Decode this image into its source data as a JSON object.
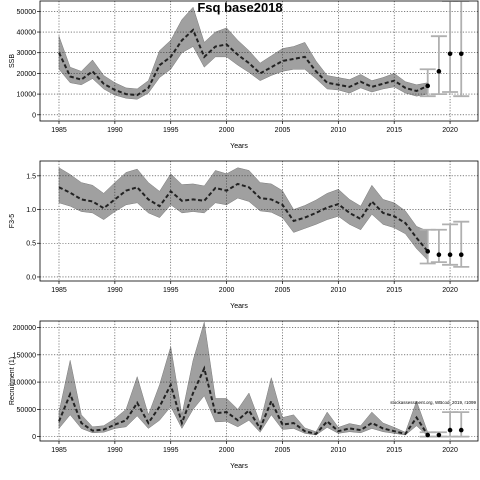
{
  "title": "Fsq base2018",
  "colors": {
    "band": "#a0a0a0",
    "band_edge": "#7a7a7a",
    "median": "#222222",
    "forecast_bar": "#b0b0b0",
    "grid": "#333333"
  },
  "chart_data": [
    {
      "type": "line",
      "name": "ssb-panel",
      "ylabel": "SSB",
      "xlabel": "Years",
      "xlim": [
        1983.3,
        2022.5
      ],
      "ylim": [
        -3000,
        55000
      ],
      "xticks": [
        1985,
        1990,
        1995,
        2000,
        2005,
        2010,
        2015,
        2020
      ],
      "yticks": [
        0,
        10000,
        20000,
        30000,
        40000,
        50000
      ],
      "grid": true,
      "x": [
        1985,
        1986,
        1987,
        1988,
        1989,
        1990,
        1991,
        1992,
        1993,
        1994,
        1995,
        1996,
        1997,
        1998,
        1999,
        2000,
        2001,
        2002,
        2003,
        2004,
        2005,
        2006,
        2007,
        2008,
        2009,
        2010,
        2011,
        2012,
        2013,
        2014,
        2015,
        2016,
        2017,
        2018
      ],
      "median": [
        30000,
        18500,
        17000,
        21000,
        15000,
        12000,
        10000,
        9500,
        13000,
        24000,
        28000,
        36000,
        41000,
        28000,
        33000,
        34000,
        29000,
        25000,
        20000,
        23000,
        26000,
        27000,
        28000,
        21000,
        15500,
        14500,
        13500,
        16000,
        13500,
        15000,
        16500,
        13000,
        11500,
        14000
      ],
      "lower": [
        22000,
        15500,
        14500,
        17500,
        12500,
        9500,
        8000,
        7500,
        10500,
        18000,
        22000,
        30000,
        33000,
        23000,
        28000,
        28000,
        24000,
        20500,
        16500,
        19000,
        21000,
        22000,
        22000,
        17500,
        12500,
        12000,
        10500,
        13000,
        11000,
        12500,
        13500,
        10500,
        9000,
        10000
      ],
      "upper": [
        38000,
        23000,
        21000,
        26500,
        19000,
        15500,
        13000,
        12500,
        16500,
        31000,
        36000,
        46000,
        52000,
        35000,
        40000,
        42000,
        36000,
        31000,
        25000,
        28500,
        32000,
        33000,
        35000,
        26000,
        19000,
        18000,
        17000,
        19500,
        16500,
        18000,
        20000,
        16000,
        14500,
        15500
      ],
      "forecast": [
        {
          "x": 2018,
          "median": 14000,
          "lower": 9000,
          "upper": 22000
        },
        {
          "x": 2019,
          "median": 21000,
          "lower": 10000,
          "upper": 38000
        },
        {
          "x": 2020,
          "median": 29500,
          "lower": 11000,
          "upper": 55000
        },
        {
          "x": 2021,
          "median": 29500,
          "lower": 9000,
          "upper": 55000
        }
      ]
    },
    {
      "type": "line",
      "name": "f-panel",
      "ylabel": "F3-5",
      "xlabel": "Years",
      "xlim": [
        1983.3,
        2022.5
      ],
      "ylim": [
        -0.06,
        1.72
      ],
      "xticks": [
        1985,
        1990,
        1995,
        2000,
        2005,
        2010,
        2015,
        2020
      ],
      "yticks": [
        0.0,
        0.5,
        1.0,
        1.5
      ],
      "ytick_labels": [
        "0.0",
        "0.5",
        "1.0",
        "1.5"
      ],
      "grid": true,
      "x": [
        1985,
        1986,
        1987,
        1988,
        1989,
        1990,
        1991,
        1992,
        1993,
        1994,
        1995,
        1996,
        1997,
        1998,
        1999,
        2000,
        2001,
        2002,
        2003,
        2004,
        2005,
        2006,
        2007,
        2008,
        2009,
        2010,
        2011,
        2012,
        2013,
        2014,
        2015,
        2016,
        2017,
        2018
      ],
      "median": [
        1.33,
        1.25,
        1.15,
        1.12,
        1.02,
        1.15,
        1.28,
        1.33,
        1.15,
        1.05,
        1.27,
        1.13,
        1.15,
        1.13,
        1.32,
        1.28,
        1.38,
        1.33,
        1.17,
        1.15,
        1.07,
        0.83,
        0.88,
        0.95,
        1.03,
        1.08,
        0.95,
        0.86,
        1.12,
        0.95,
        0.9,
        0.8,
        0.58,
        0.38
      ],
      "lower": [
        1.1,
        1.05,
        0.97,
        0.95,
        0.85,
        0.97,
        1.07,
        1.1,
        0.95,
        0.88,
        1.07,
        0.95,
        0.97,
        0.95,
        1.1,
        1.07,
        1.17,
        1.12,
        0.98,
        0.96,
        0.88,
        0.66,
        0.72,
        0.78,
        0.85,
        0.9,
        0.78,
        0.7,
        0.93,
        0.78,
        0.73,
        0.64,
        0.42,
        0.25
      ],
      "upper": [
        1.62,
        1.52,
        1.4,
        1.36,
        1.24,
        1.4,
        1.55,
        1.6,
        1.4,
        1.27,
        1.53,
        1.37,
        1.38,
        1.35,
        1.58,
        1.53,
        1.62,
        1.58,
        1.4,
        1.38,
        1.28,
        1.0,
        1.06,
        1.14,
        1.24,
        1.3,
        1.15,
        1.05,
        1.36,
        1.15,
        1.1,
        0.98,
        0.75,
        0.68
      ],
      "forecast": [
        {
          "x": 2018,
          "median": 0.38,
          "lower": 0.2,
          "upper": 0.7
        },
        {
          "x": 2019,
          "median": 0.33,
          "lower": 0.22,
          "upper": 0.7
        },
        {
          "x": 2020,
          "median": 0.33,
          "lower": 0.18,
          "upper": 0.78
        },
        {
          "x": 2021,
          "median": 0.33,
          "lower": 0.15,
          "upper": 0.82
        }
      ]
    },
    {
      "type": "line",
      "name": "recruitment-panel",
      "ylabel": "Recruitment (1)",
      "xlabel": "Years",
      "xlim": [
        1983.3,
        2022.5
      ],
      "ylim": [
        -8000,
        212000
      ],
      "xticks": [
        1985,
        1990,
        1995,
        2000,
        2005,
        2010,
        2015,
        2020
      ],
      "yticks": [
        0,
        50000,
        100000,
        150000,
        200000
      ],
      "grid": true,
      "note": "stockassessment.org, WBcod_2019, r1099",
      "x": [
        1985,
        1986,
        1987,
        1988,
        1989,
        1990,
        1991,
        1992,
        1993,
        1994,
        1995,
        1996,
        1997,
        1998,
        1999,
        2000,
        2001,
        2002,
        2003,
        2004,
        2005,
        2006,
        2007,
        2008,
        2009,
        2010,
        2011,
        2012,
        2013,
        2014,
        2015,
        2016,
        2017,
        2018
      ],
      "median": [
        28000,
        78000,
        25000,
        11000,
        13000,
        22000,
        30000,
        62000,
        25000,
        55000,
        95000,
        25000,
        80000,
        125000,
        43000,
        45000,
        30000,
        48000,
        15000,
        65000,
        22000,
        25000,
        10000,
        5000,
        28000,
        10000,
        15000,
        12000,
        25000,
        15000,
        10000,
        5000,
        35000,
        3000
      ],
      "lower": [
        15000,
        40000,
        15000,
        7000,
        8000,
        15000,
        18000,
        38000,
        15000,
        30000,
        55000,
        15000,
        50000,
        75000,
        27000,
        28000,
        18000,
        30000,
        8000,
        40000,
        13000,
        15000,
        6000,
        3000,
        17000,
        6000,
        9000,
        7000,
        15000,
        9000,
        6000,
        3000,
        20000,
        1000
      ],
      "upper": [
        45000,
        140000,
        40000,
        18000,
        20000,
        33000,
        50000,
        110000,
        40000,
        95000,
        165000,
        40000,
        140000,
        210000,
        70000,
        70000,
        50000,
        80000,
        25000,
        108000,
        35000,
        40000,
        16000,
        9000,
        45000,
        17000,
        24000,
        20000,
        45000,
        25000,
        17000,
        8000,
        65000,
        8000
      ],
      "forecast": [
        {
          "x": 2018,
          "median": 3000,
          "lower": 0,
          "upper": 8000
        },
        {
          "x": 2019,
          "median": 3000,
          "lower": 0,
          "upper": 8000
        },
        {
          "x": 2020,
          "median": 12000,
          "lower": 0,
          "upper": 45000
        },
        {
          "x": 2021,
          "median": 12000,
          "lower": 0,
          "upper": 45000
        }
      ]
    }
  ]
}
